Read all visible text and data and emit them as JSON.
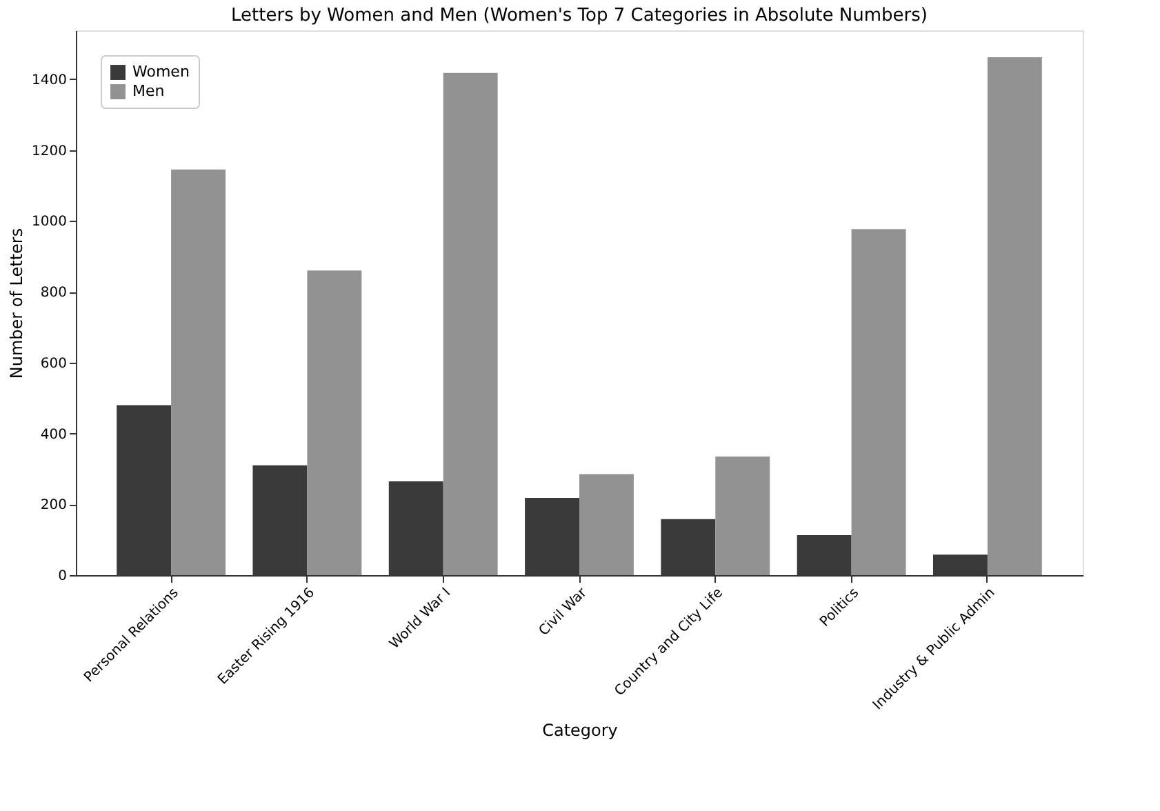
{
  "chart_data": {
    "type": "bar",
    "title": "Letters by Women and Men (Women's Top 7 Categories in Absolute Numbers)",
    "xlabel": "Category",
    "ylabel": "Number of Letters",
    "categories": [
      "Personal Relations",
      "Easter Rising 1916",
      "World War I",
      "Civil War",
      "Country and City Life",
      "Politics",
      "Industry & Public Admin"
    ],
    "series": [
      {
        "name": "Women",
        "color": "#3a3a3a",
        "values": [
          480,
          310,
          265,
          218,
          158,
          113,
          58
        ]
      },
      {
        "name": "Men",
        "color": "#929292",
        "values": [
          1145,
          860,
          1418,
          285,
          335,
          977,
          1462
        ]
      }
    ],
    "ylim": [
      0,
      1538
    ],
    "yticks": [
      0,
      200,
      400,
      600,
      800,
      1000,
      1200,
      1400
    ],
    "grid": false,
    "legend": "top left"
  }
}
